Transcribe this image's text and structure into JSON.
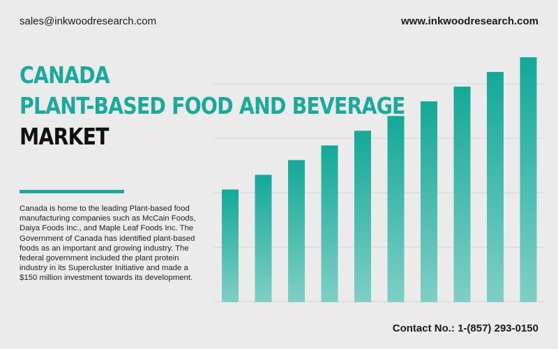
{
  "header": {
    "email": "sales@inkwoodresearch.com",
    "website": "www.inkwoodresearch.com"
  },
  "title": {
    "line1": "CANADA",
    "line2": "PLANT-BASED FOOD AND BEVERAGE",
    "line3": "MARKET"
  },
  "description": "Canada is home to the leading Plant-based food manufacturing companies such as McCain Foods, Daiya Foods Inc., and Maple Leaf Foods Inc. The Government of Canada has identified plant-based foods as an important and growing industry. The federal government included the plant protein industry in its Supercluster Initiative and made a $150 million investment towards its development.",
  "footer": {
    "contact": "Contact No.: 1-(857) 293-0150"
  },
  "colors": {
    "accent": "#1ca99c",
    "bar_top": "#14a898",
    "bar_bottom": "#7fcfc6",
    "background": "#ebebeb"
  },
  "chart_data": {
    "type": "bar",
    "title": "",
    "xlabel": "",
    "ylabel": "",
    "grid": true,
    "ylim": [
      0,
      100
    ],
    "categories": [
      "",
      "",
      "",
      "",
      "",
      "",
      "",
      "",
      "",
      ""
    ],
    "values": [
      46,
      52,
      58,
      64,
      70,
      76,
      82,
      88,
      94,
      100
    ]
  }
}
